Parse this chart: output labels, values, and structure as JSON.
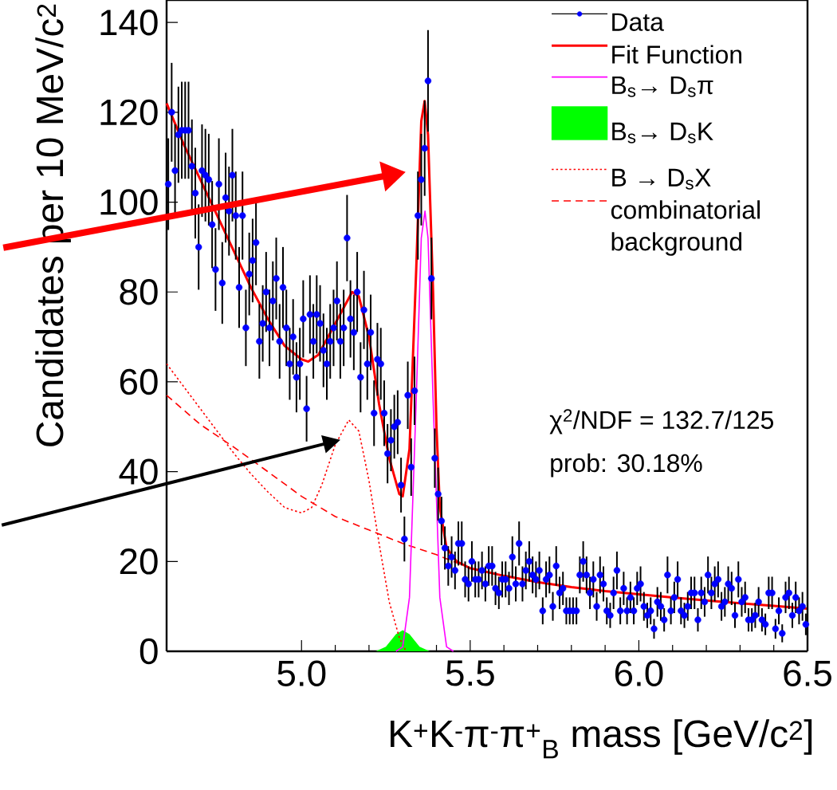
{
  "chart_data": {
    "type": "scatter",
    "xlabel": "K$^{+}$K$^{-}$π$^{-}$π$^{+}$$_{B}$ mass [GeV/c$^{2}$]",
    "ylabel": "Candidates per 10 MeV/c$^{2}$",
    "xlim": [
      4.6,
      6.5
    ],
    "ylim": [
      0,
      145
    ],
    "xticks": [
      {
        "value": 5,
        "label": "5.0"
      },
      5.5,
      {
        "value": 6,
        "label": "6.0"
      },
      6.5
    ],
    "yticks": [
      0,
      20,
      40,
      60,
      80,
      100,
      120,
      140
    ],
    "legend": "top right",
    "annotations": [
      "χ$^{2}$/NDF = 132.7/125",
      "prob:  30.18%"
    ],
    "series": [
      {
        "name": "Data",
        "color": "#0000ff",
        "marker": "circle",
        "x": [
          4.605,
          4.615,
          4.625,
          4.635,
          4.645,
          4.655,
          4.665,
          4.675,
          4.685,
          4.695,
          4.705,
          4.715,
          4.725,
          4.735,
          4.745,
          4.755,
          4.765,
          4.775,
          4.785,
          4.795,
          4.805,
          4.815,
          4.825,
          4.835,
          4.845,
          4.855,
          4.865,
          4.875,
          4.885,
          4.895,
          4.905,
          4.915,
          4.925,
          4.935,
          4.945,
          4.955,
          4.965,
          4.975,
          4.985,
          4.995,
          5.005,
          5.015,
          5.025,
          5.035,
          5.045,
          5.055,
          5.065,
          5.075,
          5.085,
          5.095,
          5.105,
          5.115,
          5.125,
          5.135,
          5.145,
          5.155,
          5.165,
          5.175,
          5.185,
          5.195,
          5.205,
          5.215,
          5.225,
          5.235,
          5.245,
          5.255,
          5.265,
          5.275,
          5.285,
          5.295,
          5.305,
          5.315,
          5.325,
          5.335,
          5.345,
          5.355,
          5.365,
          5.375,
          5.385,
          5.395,
          5.405,
          5.415,
          5.425,
          5.435,
          5.445,
          5.455,
          5.465,
          5.475,
          5.485,
          5.495,
          5.505,
          5.515,
          5.525,
          5.535,
          5.545,
          5.555,
          5.565,
          5.575,
          5.585,
          5.595,
          5.605,
          5.615,
          5.625,
          5.635,
          5.645,
          5.655,
          5.665,
          5.675,
          5.685,
          5.695,
          5.705,
          5.715,
          5.725,
          5.735,
          5.745,
          5.755,
          5.765,
          5.775,
          5.785,
          5.795,
          5.805,
          5.815,
          5.825,
          5.835,
          5.845,
          5.855,
          5.865,
          5.875,
          5.885,
          5.895,
          5.905,
          5.915,
          5.925,
          5.935,
          5.945,
          5.955,
          5.965,
          5.975,
          5.985,
          5.995,
          6.005,
          6.015,
          6.025,
          6.035,
          6.045,
          6.055,
          6.065,
          6.075,
          6.085,
          6.095,
          6.105,
          6.115,
          6.125,
          6.135,
          6.145,
          6.155,
          6.165,
          6.175,
          6.185,
          6.195,
          6.205,
          6.215,
          6.225,
          6.235,
          6.245,
          6.255,
          6.265,
          6.275,
          6.285,
          6.295,
          6.305,
          6.315,
          6.325,
          6.335,
          6.345,
          6.355,
          6.365,
          6.375,
          6.385,
          6.395,
          6.405,
          6.415,
          6.425,
          6.435,
          6.445,
          6.455,
          6.465,
          6.475,
          6.485,
          6.495
        ],
        "values": [
          104,
          120,
          107,
          115,
          116,
          116,
          116,
          108,
          102,
          90,
          107,
          106,
          105,
          95,
          85,
          104,
          82,
          101,
          98,
          106,
          97,
          81,
          97,
          72,
          84,
          87,
          91,
          69,
          73,
          80,
          72,
          78,
          83,
          69,
          81,
          72,
          64,
          70,
          61,
          64,
          74,
          54,
          75,
          69,
          75,
          73,
          67,
          64,
          69,
          72,
          78,
          69,
          72,
          92,
          74,
          71,
          80,
          61,
          76,
          64,
          71,
          53,
          65,
          64,
          53,
          44,
          47,
          50,
          51,
          37,
          25,
          57,
          41,
          58,
          97,
          105,
          112,
          127,
          83,
          43,
          35,
          29,
          23,
          19,
          21,
          18,
          24,
          24,
          16,
          15,
          20,
          16,
          16,
          18,
          15,
          19,
          19,
          14,
          13,
          16,
          16,
          14,
          21,
          15,
          24,
          15,
          18,
          20,
          17,
          16,
          18,
          9,
          16,
          17,
          10,
          19,
          13,
          14,
          9,
          9,
          9,
          9,
          17,
          20,
          17,
          13,
          16,
          10,
          17,
          15,
          9,
          8,
          13,
          18,
          9,
          14,
          9,
          12,
          9,
          14,
          15,
          10,
          8,
          9,
          5,
          11,
          10,
          7,
          17,
          9,
          12,
          16,
          9,
          8,
          10,
          13,
          13,
          7,
          13,
          11,
          17,
          13,
          15,
          16,
          10,
          11,
          15,
          14,
          8,
          16,
          11,
          12,
          7,
          7,
          8,
          11,
          7,
          6,
          13,
          13,
          5,
          9,
          4,
          12,
          13,
          8,
          12,
          9,
          10,
          6
        ],
        "errors": [
          10.2,
          11,
          10.3,
          10.7,
          10.8,
          10.8,
          10.8,
          10.4,
          10.1,
          9.5,
          10.3,
          10.3,
          10.2,
          9.7,
          9.2,
          10.2,
          9.1,
          10,
          9.9,
          10.3,
          9.8,
          9,
          9.8,
          8.5,
          9.2,
          9.3,
          9.5,
          8.3,
          8.5,
          8.9,
          8.5,
          8.8,
          9.1,
          8.3,
          9,
          8.5,
          8,
          8.4,
          7.8,
          8,
          8.6,
          7.3,
          8.7,
          8.3,
          8.7,
          8.5,
          8.2,
          8,
          8.3,
          8.5,
          8.8,
          8.3,
          8.5,
          9.6,
          8.6,
          8.4,
          8.9,
          7.8,
          8.7,
          8,
          8.4,
          7.3,
          8.1,
          8,
          7.3,
          6.6,
          6.9,
          7.1,
          7.1,
          6.1,
          5,
          7.5,
          6.4,
          7.6,
          9.8,
          10.2,
          10.6,
          11.3,
          9.1,
          6.6,
          5.9,
          5.4,
          4.8,
          4.4,
          4.6,
          4.2,
          4.9,
          4.9,
          4,
          3.9,
          4.5,
          4,
          4,
          4.2,
          3.9,
          4.4,
          4.4,
          3.7,
          3.6,
          4,
          4,
          3.7,
          4.6,
          3.9,
          4.9,
          3.9,
          4.2,
          4.5,
          4.1,
          4,
          4.2,
          3,
          4,
          4.1,
          3.2,
          4.4,
          3.6,
          3.7,
          3,
          3,
          3,
          3,
          4.1,
          4.5,
          4.1,
          3.6,
          4,
          3.2,
          4.1,
          3.9,
          3,
          2.8,
          3.6,
          4.2,
          3,
          3.7,
          3,
          3.5,
          3,
          3.7,
          3.9,
          3.2,
          2.8,
          3,
          2.2,
          3.3,
          3.2,
          2.6,
          4.1,
          3,
          3.5,
          4,
          3,
          2.8,
          3.2,
          3.6,
          3.6,
          2.6,
          3.6,
          3.3,
          4.1,
          3.6,
          3.9,
          4,
          3.2,
          3.3,
          3.9,
          3.7,
          2.8,
          4,
          3.3,
          3.5,
          2.6,
          2.6,
          2.8,
          3.3,
          2.6,
          2.4,
          3.6,
          3.6,
          2.2,
          3,
          2,
          3.5,
          3.6,
          2.8,
          3.5,
          3,
          3.2,
          2.4
        ]
      },
      {
        "name": "Fit Function",
        "type": "line",
        "color": "#ff0000",
        "x": [
          4.6,
          4.65,
          4.7,
          4.75,
          4.8,
          4.85,
          4.9,
          4.95,
          5.0,
          5.02,
          5.05,
          5.1,
          5.15,
          5.17,
          5.2,
          5.23,
          5.26,
          5.29,
          5.3,
          5.32,
          5.34,
          5.355,
          5.365,
          5.375,
          5.39,
          5.4,
          5.41,
          5.43,
          5.46,
          5.5,
          5.6,
          5.7,
          5.8,
          5.9,
          6.0,
          6.1,
          6.2,
          6.3,
          6.4,
          6.5
        ],
        "values": [
          122,
          113,
          105,
          97,
          89,
          81,
          74,
          68,
          65,
          64.5,
          66,
          73,
          80,
          79,
          70,
          55,
          43,
          35,
          34.5,
          45,
          85,
          118,
          122.5,
          115,
          80,
          50,
          32,
          23,
          20,
          18.5,
          16.8,
          15.4,
          14.3,
          13.4,
          12.7,
          12,
          11.3,
          10.7,
          10.1,
          9.5
        ]
      },
      {
        "name": "B$_{s}$→ D$_{s}$π",
        "type": "line",
        "color": "#ff00ff",
        "x": [
          5.28,
          5.3,
          5.32,
          5.34,
          5.355,
          5.366,
          5.375,
          5.39,
          5.41,
          5.43,
          5.45
        ],
        "values": [
          0,
          1,
          12,
          56,
          92,
          98,
          92,
          56,
          12,
          1,
          0
        ]
      },
      {
        "name": "B$_{s}$→ D$_{s}$K",
        "type": "area",
        "color": "#00ff00",
        "x": [
          5.22,
          5.25,
          5.28,
          5.3,
          5.32,
          5.35,
          5.38
        ],
        "values": [
          0,
          1,
          3.8,
          4.7,
          3.8,
          1,
          0
        ]
      },
      {
        "name": "B → D$_{s}$X",
        "type": "line",
        "color": "#ff0000",
        "line_style": "dotted",
        "x": [
          4.6,
          4.65,
          4.7,
          4.75,
          4.8,
          4.85,
          4.9,
          4.95,
          5.0,
          5.03,
          5.06,
          5.1,
          5.14,
          5.17,
          5.2,
          5.23,
          5.26,
          5.29,
          5.31
        ],
        "values": [
          64,
          59,
          54,
          49,
          44,
          39.5,
          35.5,
          32,
          30.8,
          32,
          37,
          46,
          51.5,
          49,
          38,
          24,
          11,
          3,
          0
        ]
      },
      {
        "name": "combinatorial background",
        "type": "line",
        "color": "#ff0000",
        "line_style": "dashed",
        "x": [
          4.6,
          4.7,
          4.8,
          4.9,
          5.0,
          5.1,
          5.2,
          5.3,
          5.4,
          5.5,
          5.6,
          5.7,
          5.8,
          5.9,
          6.0,
          6.1,
          6.2,
          6.3,
          6.4,
          6.5
        ],
        "values": [
          57,
          50.5,
          45.4,
          40,
          34.5,
          30,
          27,
          24,
          21.5,
          18.5,
          16.8,
          15.4,
          14.3,
          13.4,
          12.7,
          12,
          11.3,
          10.7,
          10.1,
          9.5
        ]
      }
    ]
  }
}
